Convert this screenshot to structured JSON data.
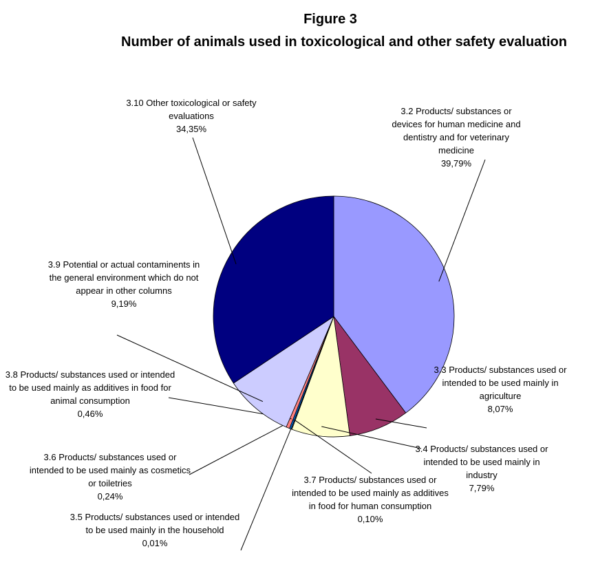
{
  "chart_data": {
    "type": "pie",
    "title": "Figure 3",
    "subtitle": "Number of animals used in toxicological and other safety evaluation",
    "categories": [
      "3.2 Products/ substances or devices for human medicine and dentistry and for veterinary medicine",
      "3.3 Products/ substances used or intended to be used mainly in agriculture",
      "3.4 Products/ substances used or intended to be used mainly in industry",
      "3.7 Products/ substances used or intended to be used mainly as additives in food for human consumption",
      "3.5 Products/ substances used or intended to be used mainly in the household",
      "3.6 Products/ substances used or intended to be used mainly as cosmetics or toiletries",
      "3.8 Products/ substances used or intended to be used mainly as additives in food for animal consumption",
      "3.9 Potential or actual contaminents in the general environment which do not appear in other columns",
      "3.10 Other toxicological or safety evaluations"
    ],
    "values": [
      39.79,
      8.07,
      7.79,
      0.1,
      0.01,
      0.24,
      0.46,
      9.19,
      34.35
    ],
    "value_labels": [
      "39,79%",
      "8,07%",
      "7,79%",
      "0,10%",
      "0,01%",
      "0,24%",
      "0,46%",
      "9,19%",
      "34,35%"
    ],
    "colors": [
      "#9999ff",
      "#993366",
      "#ffffcc",
      "#ccffff",
      "#660066",
      "#0066cc",
      "#ff8080",
      "#ccccff",
      "#000080"
    ]
  }
}
